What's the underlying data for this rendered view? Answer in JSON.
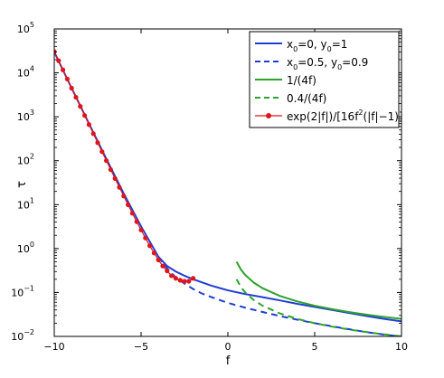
{
  "chart_data": {
    "type": "line",
    "title": "",
    "xlabel": "f",
    "ylabel": "τ",
    "xlim": [
      -10,
      10
    ],
    "ylim": [
      0.01,
      100000
    ],
    "yscale": "log",
    "grid": false,
    "legend_position": "top-right",
    "x_ticks": [
      {
        "v": -10,
        "label": "−10"
      },
      {
        "v": -5,
        "label": "−5"
      },
      {
        "v": 0,
        "label": "0"
      },
      {
        "v": 5,
        "label": "5"
      },
      {
        "v": 10,
        "label": "10"
      }
    ],
    "y_ticks": [
      {
        "v": 0.01,
        "base": "10",
        "exp": "−2"
      },
      {
        "v": 0.1,
        "base": "10",
        "exp": "−1"
      },
      {
        "v": 1,
        "base": "10",
        "exp": "0"
      },
      {
        "v": 10,
        "base": "10",
        "exp": "1"
      },
      {
        "v": 100,
        "base": "10",
        "exp": "2"
      },
      {
        "v": 1000,
        "base": "10",
        "exp": "3"
      },
      {
        "v": 10000,
        "base": "10",
        "exp": "4"
      },
      {
        "v": 100000,
        "base": "10",
        "exp": "5"
      }
    ],
    "series": [
      {
        "name": "x0=0, y0=1",
        "color": "#1f3fd1",
        "dash": "solid",
        "x": [
          -10,
          -9,
          -8,
          -7,
          -6,
          -5,
          -4,
          -3.5,
          -3,
          -2.5,
          -2,
          -1.5,
          -1,
          -0.5,
          0,
          1,
          2,
          3,
          4,
          5,
          6,
          7,
          8,
          9,
          10
        ],
        "y": [
          30000,
          4500,
          700,
          110,
          18,
          3.2,
          0.65,
          0.4,
          0.3,
          0.24,
          0.2,
          0.17,
          0.145,
          0.127,
          0.112,
          0.092,
          0.078,
          0.066,
          0.055,
          0.047,
          0.04,
          0.034,
          0.029,
          0.025,
          0.022
        ]
      },
      {
        "name": "x0=0.5, y0=0.9",
        "color": "#1f3fd1",
        "dash": "dashed",
        "x": [
          -4,
          -3.5,
          -3,
          -2.5,
          -2,
          -1.5,
          -1,
          -0.5,
          0,
          1,
          2,
          3,
          4,
          5,
          6,
          7,
          8,
          9,
          10
        ],
        "y": [
          0.65,
          0.35,
          0.22,
          0.16,
          0.12,
          0.095,
          0.08,
          0.068,
          0.058,
          0.045,
          0.036,
          0.029,
          0.024,
          0.02,
          0.017,
          0.0145,
          0.0125,
          0.011,
          0.0098
        ]
      },
      {
        "name": "1/(4f)",
        "color": "#2ea12e",
        "dash": "solid",
        "x": [
          0.5,
          0.75,
          1,
          1.5,
          2,
          3,
          4,
          5,
          6,
          7,
          8,
          9,
          10
        ],
        "y": [
          0.5,
          0.333,
          0.25,
          0.1667,
          0.125,
          0.0833,
          0.0625,
          0.05,
          0.0417,
          0.0357,
          0.03125,
          0.0278,
          0.025
        ]
      },
      {
        "name": "0.4/(4f)",
        "color": "#2ea12e",
        "dash": "dashed",
        "x": [
          0.5,
          0.75,
          1,
          1.5,
          2,
          3,
          4,
          5,
          6,
          7,
          8,
          9,
          10
        ],
        "y": [
          0.2,
          0.133,
          0.1,
          0.0667,
          0.05,
          0.0333,
          0.025,
          0.02,
          0.0167,
          0.0143,
          0.0125,
          0.0111,
          0.01
        ]
      },
      {
        "name": "exp(2|f|)/[16f2(|f|−1)]",
        "color": "#e0141b",
        "dash": "solid",
        "marker": "dot",
        "x": [
          -10,
          -9.75,
          -9.5,
          -9.25,
          -9,
          -8.75,
          -8.5,
          -8.25,
          -8,
          -7.75,
          -7.5,
          -7.25,
          -7,
          -6.75,
          -6.5,
          -6.25,
          -6,
          -5.75,
          -5.5,
          -5.25,
          -5,
          -4.75,
          -4.5,
          -4.25,
          -4,
          -3.75,
          -3.5,
          -3.25,
          -3,
          -2.75,
          -2.5,
          -2.25,
          -2
        ],
        "y": [
          30636,
          18939,
          11713,
          7247,
          4487,
          2780,
          1724,
          1070,
          664.6,
          413.4,
          257.5,
          160.6,
          100.3,
          62.8,
          39.4,
          24.8,
          15.7,
          9.96,
          6.36,
          4.09,
          2.65,
          1.74,
          1.16,
          0.79,
          0.55,
          0.4,
          0.31,
          0.24,
          0.21,
          0.19,
          0.18,
          0.18,
          0.21
        ]
      }
    ],
    "legend": [
      {
        "parts": [
          {
            "t": "x"
          },
          {
            "t": "0",
            "sub": true
          },
          {
            "t": "=0, y"
          },
          {
            "t": "0",
            "sub": true
          },
          {
            "t": "=1"
          }
        ],
        "color": "#1f3fd1",
        "dash": "solid"
      },
      {
        "parts": [
          {
            "t": "x"
          },
          {
            "t": "0",
            "sub": true
          },
          {
            "t": "=0.5, y"
          },
          {
            "t": "0",
            "sub": true
          },
          {
            "t": "=0.9"
          }
        ],
        "color": "#1f3fd1",
        "dash": "dashed"
      },
      {
        "parts": [
          {
            "t": "1/(4f)"
          }
        ],
        "color": "#2ea12e",
        "dash": "solid"
      },
      {
        "parts": [
          {
            "t": "0.4/(4f)"
          }
        ],
        "color": "#2ea12e",
        "dash": "dashed"
      },
      {
        "parts": [
          {
            "t": "exp(2|f|)/[16f"
          },
          {
            "t": "2",
            "sup": true
          },
          {
            "t": "(|f|−1)]"
          }
        ],
        "color": "#e0141b",
        "dash": "solid",
        "marker": "dot"
      }
    ]
  }
}
